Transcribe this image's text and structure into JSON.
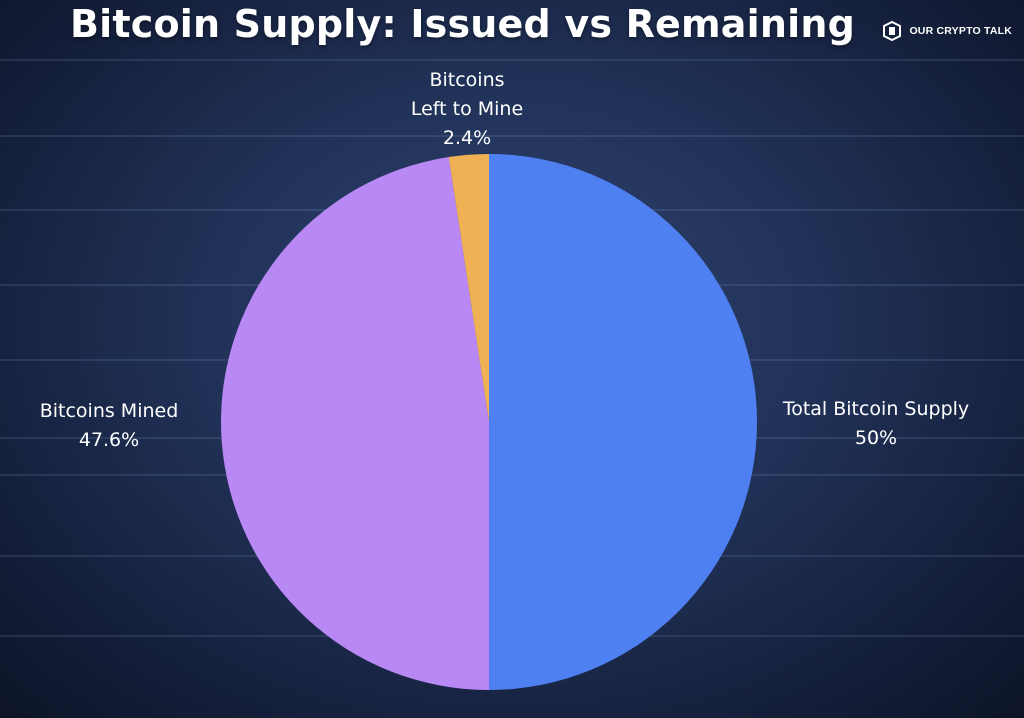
{
  "title": "Bitcoin Supply: Issued vs Remaining",
  "brand": {
    "logo_icon": "our-crypto-talk-logo",
    "name": "OUR CRYPTO TALK"
  },
  "colors": {
    "background": "#1c2b4e",
    "total_supply": "#4f80f2",
    "mined": "#b888f4",
    "left_to_mine": "#f0b155"
  },
  "chart_data": {
    "type": "pie",
    "title": "Bitcoin Supply: Issued vs Remaining",
    "slices": [
      {
        "name": "Total Bitcoin Supply",
        "label_lines": [
          "Total Bitcoin Supply",
          "50%"
        ],
        "value": 50,
        "color": "#4f80f2"
      },
      {
        "name": "Bitcoins Mined",
        "label_lines": [
          "Bitcoins Mined",
          "47.6%"
        ],
        "value": 47.6,
        "color": "#b888f4"
      },
      {
        "name": "Bitcoins Left to Mine",
        "label_lines": [
          "Bitcoins",
          "Left to Mine",
          "2.4%"
        ],
        "value": 2.4,
        "color": "#f0b155"
      }
    ],
    "start_angle": "top",
    "direction": "clockwise",
    "legend": "none"
  }
}
